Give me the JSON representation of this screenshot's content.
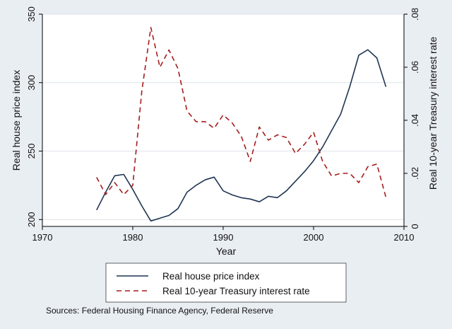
{
  "chart_data": {
    "type": "line",
    "xlabel": "Year",
    "ylabel_left": "Real house price index",
    "ylabel_right": "Real 10-year Treasury interest rate",
    "xlim": [
      1970,
      2010
    ],
    "ylim_left": [
      195,
      350
    ],
    "ylim_right": [
      0,
      0.08
    ],
    "x_ticks": [
      1970,
      1980,
      1990,
      2000,
      2010
    ],
    "y_ticks_left": [
      {
        "value": 200,
        "label": "200"
      },
      {
        "value": 250,
        "label": "250"
      },
      {
        "value": 300,
        "label": "300"
      },
      {
        "value": 350,
        "label": "350"
      }
    ],
    "y_ticks_right": [
      {
        "value": 0,
        "label": "0"
      },
      {
        "value": 0.02,
        "label": ".02"
      },
      {
        "value": 0.04,
        "label": ".04"
      },
      {
        "value": 0.06,
        "label": ".06"
      },
      {
        "value": 0.08,
        "label": ".08"
      }
    ],
    "grid": true,
    "legend_position": "bottom",
    "series": [
      {
        "name": "Real house price index",
        "axis": "left",
        "style": "solid",
        "color": "#1f3552",
        "x": [
          1976,
          1977,
          1978,
          1979,
          1980,
          1981,
          1982,
          1983,
          1984,
          1985,
          1986,
          1987,
          1988,
          1989,
          1990,
          1991,
          1992,
          1993,
          1994,
          1995,
          1996,
          1997,
          1998,
          1999,
          2000,
          2001,
          2002,
          2003,
          2004,
          2005,
          2006,
          2007,
          2008
        ],
        "y": [
          207,
          220,
          232,
          233,
          222,
          210,
          199,
          201,
          203,
          208,
          220,
          225,
          229,
          231,
          221,
          218,
          216,
          215,
          213,
          217,
          216,
          221,
          228,
          235,
          243,
          253,
          265,
          277,
          297,
          320,
          324,
          318,
          297
        ]
      },
      {
        "name": "Real 10-year Treasury interest rate",
        "axis": "right",
        "style": "dashed",
        "color": "#a31d1d",
        "x": [
          1976,
          1977,
          1978,
          1979,
          1980,
          1981,
          1982,
          1983,
          1984,
          1985,
          1986,
          1987,
          1988,
          1989,
          1990,
          1991,
          1992,
          1993,
          1994,
          1995,
          1996,
          1997,
          1998,
          1999,
          2000,
          2001,
          2002,
          2003,
          2004,
          2005,
          2006,
          2007,
          2008
        ],
        "y": [
          0.0185,
          0.012,
          0.0165,
          0.012,
          0.0155,
          0.051,
          0.075,
          0.06,
          0.0665,
          0.0595,
          0.0435,
          0.0395,
          0.0395,
          0.037,
          0.042,
          0.039,
          0.034,
          0.0245,
          0.0375,
          0.0325,
          0.0345,
          0.0335,
          0.0275,
          0.031,
          0.0355,
          0.0245,
          0.019,
          0.02,
          0.02,
          0.0165,
          0.0225,
          0.0235,
          0.011
        ]
      }
    ]
  },
  "source_note": "Sources: Federal Housing Finance Agency, Federal Reserve"
}
